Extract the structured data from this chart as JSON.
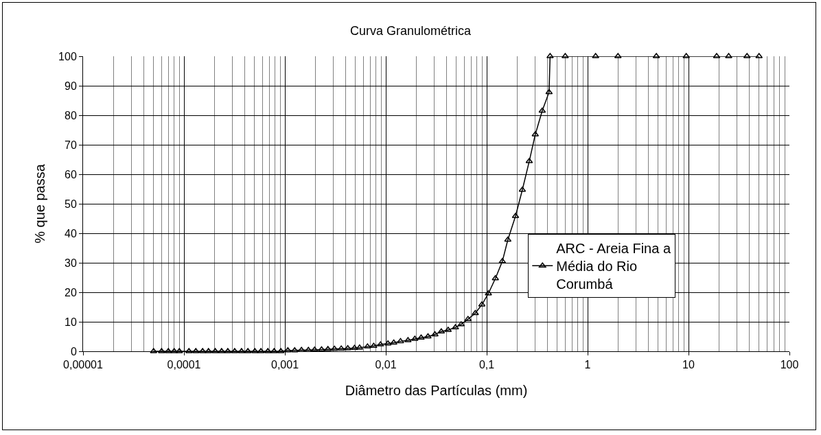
{
  "chart_data": {
    "type": "line",
    "title": "Curva Granulométrica",
    "xlabel": "Diâmetro das Partículas (mm)",
    "ylabel": "% que passa",
    "log": "x",
    "grid": true,
    "legend": "right",
    "marker": "triangle",
    "line_style": "solid",
    "xlim": [
      1e-05,
      100
    ],
    "xticks": [
      {
        "value": 1e-05,
        "label": "0,00001"
      },
      {
        "value": 0.0001,
        "label": "0,0001"
      },
      {
        "value": 0.001,
        "label": "0,001"
      },
      {
        "value": 0.01,
        "label": "0,01"
      },
      {
        "value": 0.1,
        "label": "0,1"
      },
      1,
      10,
      100
    ],
    "ylim": [
      0,
      100
    ],
    "yticks": [
      0,
      10,
      20,
      30,
      40,
      50,
      60,
      70,
      80,
      90,
      100
    ],
    "series": [
      {
        "name": "ARC - Areia Fina a Média do Rio Corumbá",
        "color": "#000000",
        "x": [
          5e-05,
          6e-05,
          7e-05,
          8e-05,
          9e-05,
          0.000112,
          0.000131,
          0.000153,
          0.000175,
          0.000204,
          0.000236,
          0.000272,
          0.000318,
          0.000372,
          0.00043,
          0.000504,
          0.000579,
          0.000678,
          0.000783,
          0.000912,
          0.00107,
          0.00125,
          0.00146,
          0.00171,
          0.00197,
          0.00231,
          0.00267,
          0.0031,
          0.00362,
          0.0042,
          0.0049,
          0.0055,
          0.00659,
          0.00759,
          0.00887,
          0.0105,
          0.012,
          0.014,
          0.0166,
          0.0194,
          0.0224,
          0.0262,
          0.0307,
          0.0355,
          0.0415,
          0.049,
          0.0558,
          0.0653,
          0.0771,
          0.0896,
          0.104,
          0.122,
          0.143,
          0.162,
          0.193,
          0.2255,
          0.264,
          0.303,
          0.355,
          0.415,
          0.425,
          0.6,
          1.2,
          2,
          4.8,
          9.5,
          19,
          25,
          38,
          50
        ],
        "values": [
          0,
          0,
          0,
          0,
          0,
          0,
          0,
          0,
          0,
          0,
          0,
          0,
          0,
          0,
          0,
          0,
          0,
          0,
          0,
          0,
          0.3,
          0.3,
          0.4,
          0.4,
          0.5,
          0.6,
          0.7,
          0.8,
          0.9,
          1,
          1.1,
          1.2,
          1.6,
          1.8,
          2.3,
          2.6,
          2.9,
          3.4,
          3.7,
          4.2,
          4.6,
          5,
          5.7,
          6.7,
          7.2,
          8.1,
          9.1,
          10.9,
          12.9,
          15.8,
          19.6,
          24.7,
          30.5,
          37.8,
          45.8,
          54.7,
          64.4,
          73.5,
          81.5,
          87.8,
          100,
          100,
          100,
          100,
          100,
          100,
          100,
          100,
          100,
          100
        ]
      }
    ]
  }
}
